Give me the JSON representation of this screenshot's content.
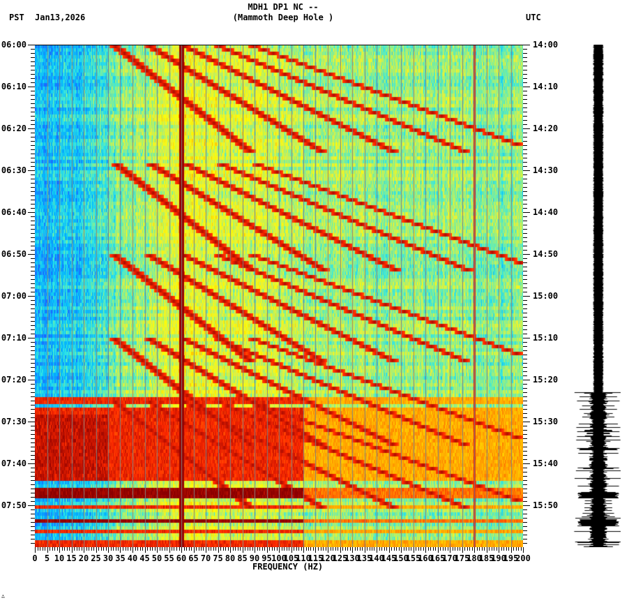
{
  "header": {
    "station_line": "MDH1 DP1 NC --",
    "site_line": "(Mammoth Deep Hole )",
    "left_timezone": "PST",
    "date": "Jan13,2026",
    "right_timezone": "UTC"
  },
  "footer": {
    "corner_mark": "∴"
  },
  "colors": {
    "background": "#ffffff",
    "axis": "#000000",
    "gridline": "#808080",
    "waveform": "#000000",
    "colormap": [
      "#1e64ff",
      "#00b4ff",
      "#30e6e6",
      "#8cf08c",
      "#e6f03c",
      "#ffff00",
      "#ffa000",
      "#ff2800",
      "#8c0000"
    ]
  },
  "chart_data": {
    "type": "heatmap",
    "title": "MDH1 DP1 NC -- (Mammoth Deep Hole )",
    "subtitle": "Jan13,2026",
    "xlabel": "FREQUENCY (HZ)",
    "ylabel_left": "PST",
    "ylabel_right": "UTC",
    "xlim": [
      0,
      200
    ],
    "x_ticks": [
      "0",
      "5",
      "10",
      "15",
      "20",
      "25",
      "30",
      "35",
      "40",
      "45",
      "50",
      "55",
      "60",
      "65",
      "70",
      "75",
      "80",
      "85",
      "90",
      "95",
      "100",
      "105",
      "110",
      "115",
      "120",
      "125",
      "130",
      "135",
      "140",
      "145",
      "150",
      "155",
      "160",
      "165",
      "170",
      "175",
      "180",
      "185",
      "190",
      "195",
      "200"
    ],
    "x_major_step": 5,
    "x_minor_step": 1,
    "grid": true,
    "y_left_ticks": [
      "06:00",
      "06:10",
      "06:20",
      "06:30",
      "06:40",
      "06:50",
      "07:00",
      "07:10",
      "07:20",
      "07:30",
      "07:40",
      "07:50"
    ],
    "y_right_ticks": [
      "14:00",
      "14:10",
      "14:20",
      "14:30",
      "14:40",
      "14:50",
      "15:00",
      "15:10",
      "15:20",
      "15:30",
      "15:40",
      "15:50"
    ],
    "y_minor_step_min": 1,
    "time_span_min": 120,
    "rows_minutes_per_row": 1,
    "persistent_lines_hz": [
      60,
      180
    ],
    "low_freq_quiet_band_hz": [
      0,
      30
    ],
    "chirp_sweeps": {
      "description": "Repeating diagonal high-energy bands (dark red) sweeping from ~20-60 Hz upward over time; strongest below 120 Hz",
      "period_min": 20,
      "sweep_starts_min": [
        0,
        28,
        50,
        70,
        85
      ],
      "freq_range_hz": [
        20,
        140
      ]
    },
    "broadband_events": [
      {
        "start_min": 84,
        "end_min": 86,
        "level": "high"
      },
      {
        "start_min": 87,
        "end_min": 88.5,
        "level": "high"
      },
      {
        "start_min": 88.5,
        "end_min": 104,
        "level": "high",
        "note": "0-30 Hz saturated"
      },
      {
        "start_min": 106,
        "end_min": 108,
        "level": "very high"
      },
      {
        "start_min": 110,
        "end_min": 111,
        "level": "high"
      },
      {
        "start_min": 113,
        "end_min": 114.5,
        "level": "very high"
      },
      {
        "start_min": 116,
        "end_min": 117,
        "level": "high"
      },
      {
        "start_min": 118.5,
        "end_min": 120,
        "level": "high"
      }
    ],
    "waveform": {
      "quiet_until_min": 83,
      "active_from_min": 83,
      "burst_peaks_min": [
        107.5,
        114
      ]
    }
  }
}
